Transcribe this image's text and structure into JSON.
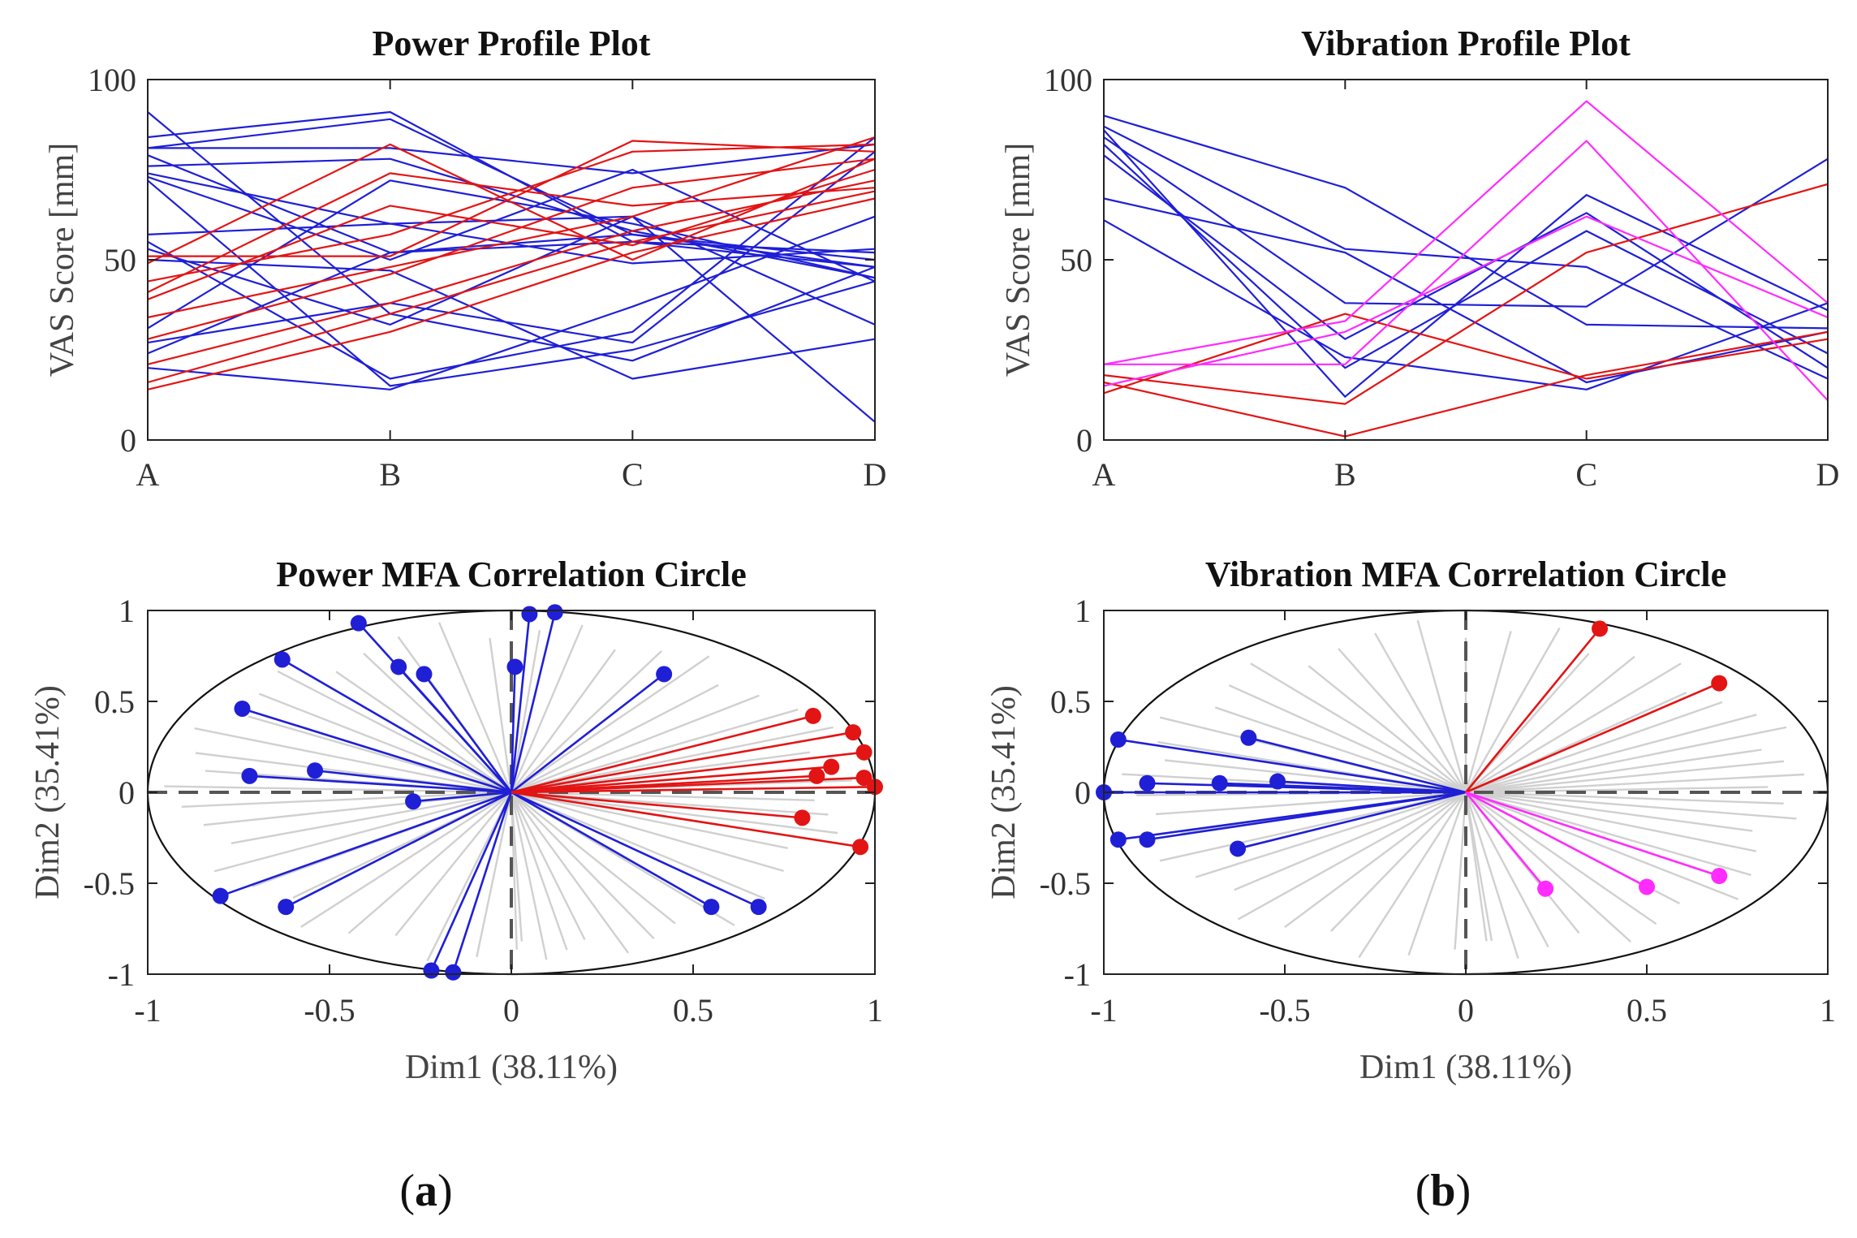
{
  "colors": {
    "blue": "#1f1fd6",
    "red": "#e31414",
    "magenta": "#ff2bff",
    "grey": "#d0d0d0",
    "axis": "#222222"
  },
  "panel_labels": [
    "(a)",
    "(b)"
  ],
  "chart_data": [
    {
      "id": "power-profile",
      "type": "line",
      "title": "Power Profile Plot",
      "xlabel": "",
      "ylabel": "VAS Score [mm]",
      "categories": [
        "A",
        "B",
        "C",
        "D"
      ],
      "ylim": [
        0,
        100
      ],
      "yticks": [
        0,
        50,
        100
      ],
      "series": [
        {
          "name": "blue-1",
          "color": "blue",
          "values": [
            91,
            35,
            22,
            48
          ]
        },
        {
          "name": "blue-2",
          "color": "blue",
          "values": [
            84,
            91,
            55,
            52
          ]
        },
        {
          "name": "blue-3",
          "color": "blue",
          "values": [
            81,
            89,
            57,
            48
          ]
        },
        {
          "name": "blue-4",
          "color": "blue",
          "values": [
            81,
            81,
            74,
            82
          ]
        },
        {
          "name": "blue-5",
          "color": "blue",
          "values": [
            79,
            52,
            57,
            50
          ]
        },
        {
          "name": "blue-6",
          "color": "blue",
          "values": [
            76,
            78,
            58,
            45
          ]
        },
        {
          "name": "blue-7",
          "color": "blue",
          "values": [
            74,
            60,
            62,
            32
          ]
        },
        {
          "name": "blue-8",
          "color": "blue",
          "values": [
            73,
            50,
            75,
            44
          ]
        },
        {
          "name": "blue-9",
          "color": "blue",
          "values": [
            72,
            15,
            25,
            44
          ]
        },
        {
          "name": "blue-10",
          "color": "blue",
          "values": [
            57,
            60,
            49,
            53
          ]
        },
        {
          "name": "blue-11",
          "color": "blue",
          "values": [
            55,
            17,
            30,
            84
          ]
        },
        {
          "name": "blue-12",
          "color": "blue",
          "values": [
            53,
            32,
            62,
            5
          ]
        },
        {
          "name": "blue-13",
          "color": "blue",
          "values": [
            50,
            47,
            17,
            28
          ]
        },
        {
          "name": "blue-14",
          "color": "blue",
          "values": [
            31,
            72,
            60,
            45
          ]
        },
        {
          "name": "blue-15",
          "color": "blue",
          "values": [
            27,
            38,
            27,
            80
          ]
        },
        {
          "name": "blue-16",
          "color": "blue",
          "values": [
            24,
            52,
            55,
            48
          ]
        },
        {
          "name": "blue-17",
          "color": "blue",
          "values": [
            20,
            14,
            37,
            62
          ]
        },
        {
          "name": "red-1",
          "color": "red",
          "values": [
            51,
            51,
            83,
            80
          ]
        },
        {
          "name": "red-2",
          "color": "red",
          "values": [
            49,
            82,
            50,
            78
          ]
        },
        {
          "name": "red-3",
          "color": "red",
          "values": [
            44,
            57,
            80,
            82
          ]
        },
        {
          "name": "red-4",
          "color": "red",
          "values": [
            41,
            74,
            65,
            70
          ]
        },
        {
          "name": "red-5",
          "color": "red",
          "values": [
            39,
            65,
            54,
            75
          ]
        },
        {
          "name": "red-6",
          "color": "red",
          "values": [
            34,
            48,
            62,
            84
          ]
        },
        {
          "name": "red-7",
          "color": "red",
          "values": [
            28,
            46,
            70,
            78
          ]
        },
        {
          "name": "red-8",
          "color": "red",
          "values": [
            21,
            38,
            58,
            72
          ]
        },
        {
          "name": "red-9",
          "color": "red",
          "values": [
            16,
            35,
            55,
            69
          ]
        },
        {
          "name": "red-10",
          "color": "red",
          "values": [
            14,
            30,
            52,
            67
          ]
        }
      ]
    },
    {
      "id": "vibration-profile",
      "type": "line",
      "title": "Vibration Profile Plot",
      "xlabel": "",
      "ylabel": "VAS Score [mm]",
      "categories": [
        "A",
        "B",
        "C",
        "D"
      ],
      "ylim": [
        0,
        100
      ],
      "yticks": [
        0,
        50,
        100
      ],
      "series": [
        {
          "name": "blue-1",
          "color": "blue",
          "values": [
            90,
            70,
            32,
            31
          ]
        },
        {
          "name": "blue-2",
          "color": "blue",
          "values": [
            87,
            53,
            48,
            17
          ]
        },
        {
          "name": "blue-3",
          "color": "blue",
          "values": [
            86,
            12,
            68,
            36
          ]
        },
        {
          "name": "blue-4",
          "color": "blue",
          "values": [
            84,
            38,
            37,
            78
          ]
        },
        {
          "name": "blue-5",
          "color": "blue",
          "values": [
            82,
            20,
            58,
            24
          ]
        },
        {
          "name": "blue-6",
          "color": "blue",
          "values": [
            79,
            28,
            63,
            20
          ]
        },
        {
          "name": "blue-7",
          "color": "blue",
          "values": [
            67,
            52,
            16,
            30
          ]
        },
        {
          "name": "blue-8",
          "color": "blue",
          "values": [
            61,
            23,
            14,
            38
          ]
        },
        {
          "name": "red-1",
          "color": "red",
          "values": [
            18,
            10,
            52,
            71
          ]
        },
        {
          "name": "red-2",
          "color": "red",
          "values": [
            16,
            1,
            18,
            30
          ]
        },
        {
          "name": "red-3",
          "color": "red",
          "values": [
            13,
            35,
            17,
            28
          ]
        },
        {
          "name": "magenta-1",
          "color": "magenta",
          "values": [
            21,
            33,
            94,
            38
          ]
        },
        {
          "name": "magenta-2",
          "color": "magenta",
          "values": [
            21,
            21,
            83,
            11
          ]
        },
        {
          "name": "magenta-3",
          "color": "magenta",
          "values": [
            15,
            30,
            62,
            34
          ]
        }
      ]
    },
    {
      "id": "power-mfa",
      "type": "scatter",
      "title": "Power MFA Correlation Circle",
      "xlabel": "Dim1 (38.11%)",
      "ylabel": "Dim2 (35.41%)",
      "xlim": [
        -1,
        1
      ],
      "ylim": [
        -1,
        1
      ],
      "xticks": [
        -1,
        -0.5,
        0,
        0.5,
        1
      ],
      "yticks": [
        -1,
        -0.5,
        0,
        0.5,
        1
      ],
      "background_vector_angles": [
        -88,
        -84,
        -80,
        -76,
        -70,
        -64,
        -58,
        -50,
        -40,
        -30,
        -22,
        -14,
        -8,
        -3,
        4,
        9,
        15,
        22,
        30,
        38,
        46,
        54,
        62,
        70,
        78,
        85,
        94,
        102,
        110,
        118,
        126,
        134,
        142,
        150,
        158,
        166,
        172,
        178,
        185,
        192,
        200,
        208,
        216,
        224,
        232,
        240,
        248,
        256,
        264,
        271
      ],
      "vectors": [
        {
          "color": "blue",
          "x": -0.42,
          "y": 0.93
        },
        {
          "color": "blue",
          "x": 0.05,
          "y": 0.98
        },
        {
          "color": "blue",
          "x": 0.12,
          "y": 0.99
        },
        {
          "color": "blue",
          "x": -0.63,
          "y": 0.73
        },
        {
          "color": "blue",
          "x": -0.31,
          "y": 0.69
        },
        {
          "color": "blue",
          "x": -0.24,
          "y": 0.65
        },
        {
          "color": "blue",
          "x": 0.01,
          "y": 0.69
        },
        {
          "color": "blue",
          "x": 0.42,
          "y": 0.65
        },
        {
          "color": "blue",
          "x": -0.74,
          "y": 0.46
        },
        {
          "color": "blue",
          "x": -0.72,
          "y": 0.09
        },
        {
          "color": "blue",
          "x": -0.54,
          "y": 0.12
        },
        {
          "color": "blue",
          "x": -0.27,
          "y": -0.05
        },
        {
          "color": "blue",
          "x": -0.8,
          "y": -0.57
        },
        {
          "color": "blue",
          "x": -0.62,
          "y": -0.63
        },
        {
          "color": "blue",
          "x": -0.22,
          "y": -0.98
        },
        {
          "color": "blue",
          "x": -0.16,
          "y": -0.99
        },
        {
          "color": "blue",
          "x": 0.55,
          "y": -0.63
        },
        {
          "color": "blue",
          "x": 0.68,
          "y": -0.63
        },
        {
          "color": "red",
          "x": 0.83,
          "y": 0.42
        },
        {
          "color": "red",
          "x": 0.94,
          "y": 0.33
        },
        {
          "color": "red",
          "x": 0.97,
          "y": 0.22
        },
        {
          "color": "red",
          "x": 0.88,
          "y": 0.14
        },
        {
          "color": "red",
          "x": 0.84,
          "y": 0.09
        },
        {
          "color": "red",
          "x": 0.97,
          "y": 0.08
        },
        {
          "color": "red",
          "x": 1.0,
          "y": 0.03
        },
        {
          "color": "red",
          "x": 0.8,
          "y": -0.14
        },
        {
          "color": "red",
          "x": 0.96,
          "y": -0.3
        }
      ]
    },
    {
      "id": "vibration-mfa",
      "type": "scatter",
      "title": "Vibration MFA Correlation Circle",
      "xlabel": "Dim1 (38.11%)",
      "ylabel": "Dim2 (35.41%)",
      "xlim": [
        -1,
        1
      ],
      "ylim": [
        -1,
        1
      ],
      "xticks": [
        -1,
        -0.5,
        0,
        0.5,
        1
      ],
      "yticks": [
        -1,
        -0.5,
        0,
        0.5,
        1
      ],
      "background_vector_angles": [
        -86,
        -81,
        -75,
        -68,
        -61,
        -54,
        -46,
        -38,
        -30,
        -22,
        -15,
        -9,
        -4,
        2,
        6,
        11,
        16,
        22,
        28,
        35,
        42,
        50,
        58,
        66,
        74,
        82,
        90,
        98,
        106,
        114,
        122,
        130,
        138,
        146,
        154,
        162,
        168,
        174,
        181,
        188,
        196,
        204,
        212,
        220,
        228,
        236,
        244,
        252,
        260,
        268,
        275
      ],
      "vectors": [
        {
          "color": "blue",
          "x": -0.96,
          "y": 0.29
        },
        {
          "color": "blue",
          "x": -1.0,
          "y": 0.0
        },
        {
          "color": "blue",
          "x": -0.88,
          "y": 0.05
        },
        {
          "color": "blue",
          "x": -0.68,
          "y": 0.05
        },
        {
          "color": "blue",
          "x": -0.6,
          "y": 0.3
        },
        {
          "color": "blue",
          "x": -0.52,
          "y": 0.06
        },
        {
          "color": "blue",
          "x": -0.96,
          "y": -0.26
        },
        {
          "color": "blue",
          "x": -0.88,
          "y": -0.26
        },
        {
          "color": "blue",
          "x": -0.63,
          "y": -0.31
        },
        {
          "color": "red",
          "x": 0.37,
          "y": 0.9
        },
        {
          "color": "red",
          "x": 0.7,
          "y": 0.6
        },
        {
          "color": "magenta",
          "x": 0.22,
          "y": -0.53
        },
        {
          "color": "magenta",
          "x": 0.5,
          "y": -0.52
        },
        {
          "color": "magenta",
          "x": 0.7,
          "y": -0.46
        }
      ]
    }
  ]
}
